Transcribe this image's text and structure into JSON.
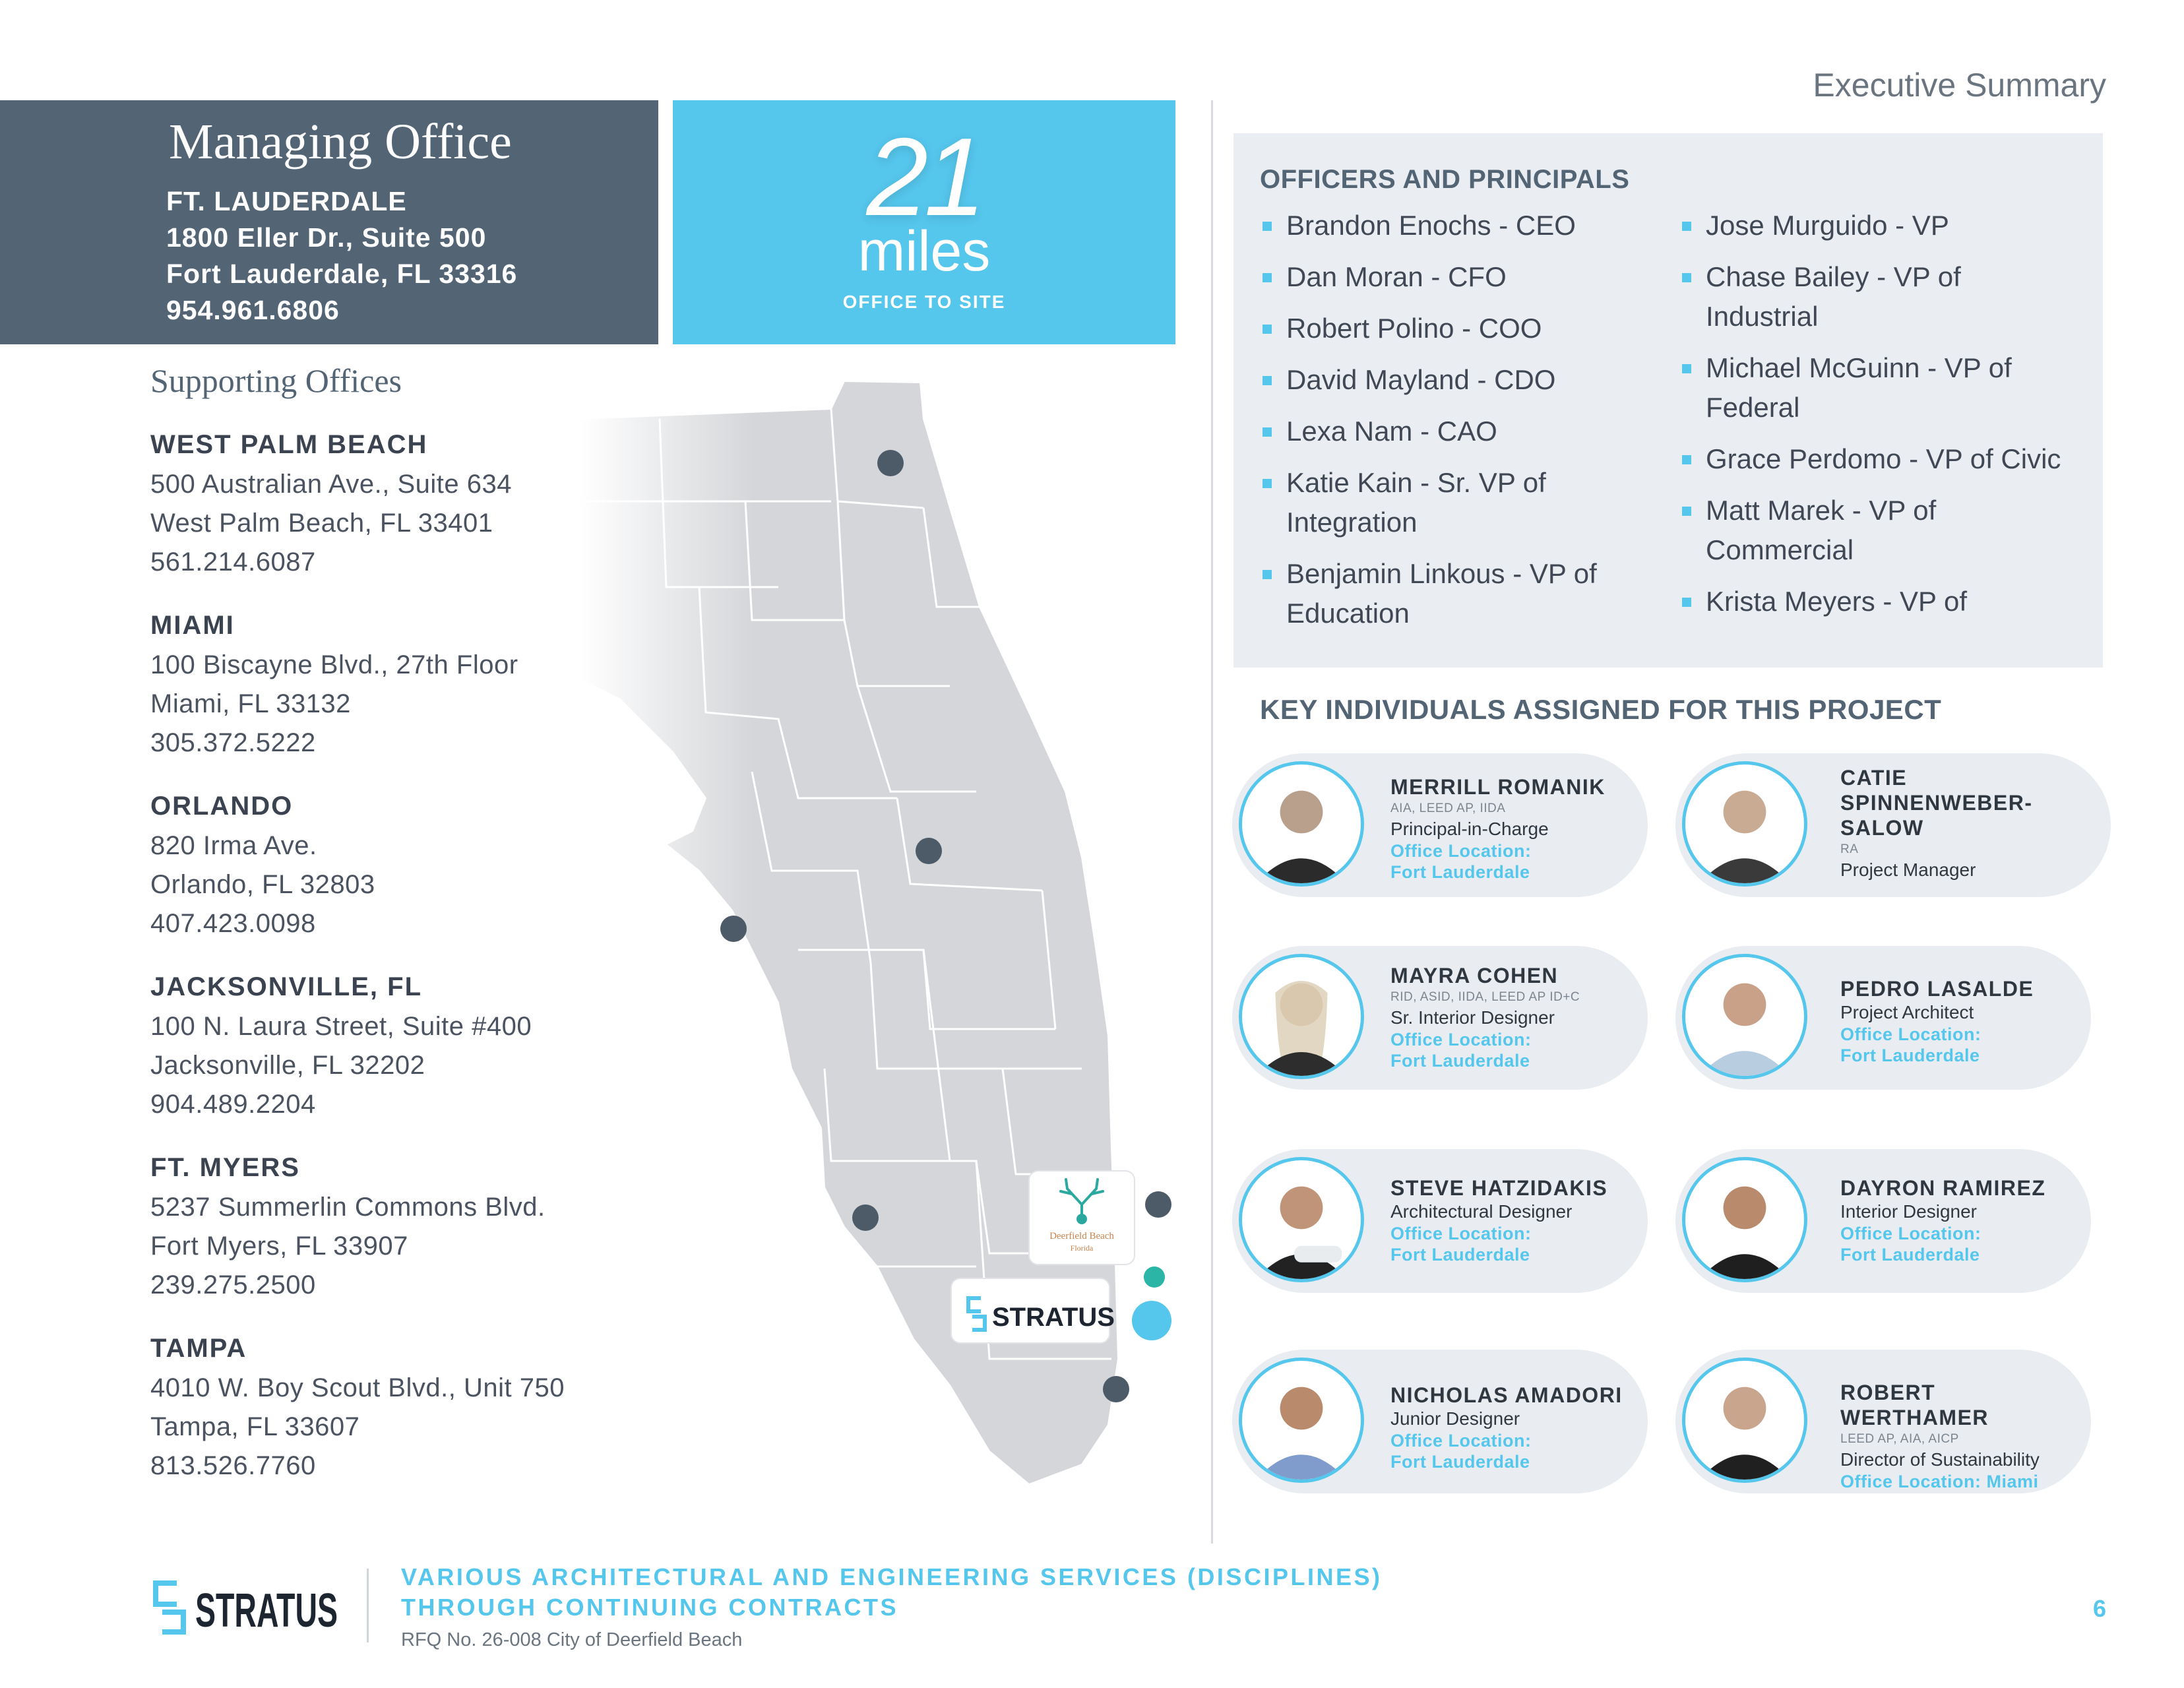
{
  "header": {
    "section_title": "Executive Summary"
  },
  "managing_office": {
    "title": "Managing Office",
    "city": "FT. LAUDERDALE",
    "address1": "1800 Eller Dr., Suite 500",
    "address2": "Fort Lauderdale, FL 33316",
    "phone": "954.961.6806"
  },
  "distance": {
    "value": "21",
    "unit": "miles",
    "caption": "OFFICE TO SITE"
  },
  "supporting": {
    "title": "Supporting Offices",
    "offices": [
      {
        "city": "WEST PALM BEACH",
        "address1": "500 Australian Ave., Suite 634",
        "address2": "West Palm Beach, FL 33401",
        "phone": "561.214.6087"
      },
      {
        "city": "MIAMI",
        "address1": "100 Biscayne Blvd., 27th Floor",
        "address2": "Miami, FL 33132",
        "phone": "305.372.5222"
      },
      {
        "city": "ORLANDO",
        "address1": "820 Irma Ave.",
        "address2": "Orlando, FL 32803",
        "phone": "407.423.0098"
      },
      {
        "city": "JACKSONVILLE, FL",
        "address1": "100 N. Laura Street, Suite #400",
        "address2": "Jacksonville, FL 32202",
        "phone": "904.489.2204"
      },
      {
        "city": "FT. MYERS",
        "address1": "5237 Summerlin Commons Blvd.",
        "address2": "Fort Myers, FL 33907",
        "phone": "239.275.2500"
      },
      {
        "city": "TAMPA",
        "address1": "4010 W. Boy Scout Blvd., Unit 750",
        "address2": "Tampa, FL 33607",
        "phone": "813.526.7760"
      }
    ]
  },
  "map": {
    "client_badge": {
      "line1": "Deerfield Beach",
      "line2": "Florida"
    },
    "stratus_badge": "STRATUS",
    "colors": {
      "land": "#d4d6d9",
      "marker": "#4d5a68",
      "site": "#55c6ec",
      "site_small": "#2bb5a6"
    }
  },
  "officers": {
    "title": "OFFICERS AND PRINCIPALS",
    "col1": [
      {
        "l1": "Brandon Enochs - CEO",
        "l2": ""
      },
      {
        "l1": "Dan Moran - CFO",
        "l2": ""
      },
      {
        "l1": "Robert Polino - COO",
        "l2": ""
      },
      {
        "l1": "David Mayland - CDO",
        "l2": ""
      },
      {
        "l1": "Lexa Nam - CAO",
        "l2": ""
      },
      {
        "l1": "Katie Kain - Sr. VP of",
        "l2": "Integration"
      },
      {
        "l1": "Benjamin Linkous - VP of",
        "l2": "Education"
      }
    ],
    "col2": [
      {
        "l1": "Jose Murguido - VP",
        "l2": ""
      },
      {
        "l1": "Chase Bailey - VP of",
        "l2": "Industrial"
      },
      {
        "l1": "Michael McGuinn - VP of",
        "l2": "Federal"
      },
      {
        "l1": "Grace Perdomo - VP of Civic",
        "l2": ""
      },
      {
        "l1": "Matt Marek - VP of",
        "l2": "Commercial"
      },
      {
        "l1": "Krista Meyers - VP of",
        "l2": ""
      }
    ]
  },
  "key_individuals": {
    "title": "KEY INDIVIDUALS ASSIGNED FOR THIS PROJECT",
    "people": [
      {
        "name": "MERRILL ROMANIK",
        "name2": "",
        "creds": "AIA, LEED AP, IIDA",
        "role": "Principal-in-Charge",
        "loc1": "Office Location:",
        "loc2": "Fort Lauderdale"
      },
      {
        "name": "CATIE",
        "name2": "SPINNENWEBER- SALOW",
        "creds": "RA",
        "role": "Project Manager",
        "loc1": "",
        "loc2": ""
      },
      {
        "name": "MAYRA COHEN",
        "name2": "",
        "creds": "RID, ASID, IIDA, LEED AP ID+C",
        "role": "Sr. Interior Designer",
        "loc1": "Office Location:",
        "loc2": "Fort Lauderdale"
      },
      {
        "name": "PEDRO LASALDE",
        "name2": "",
        "creds": "",
        "role": "Project Architect",
        "loc1": "Office Location:",
        "loc2": "Fort Lauderdale"
      },
      {
        "name": "STEVE HATZIDAKIS",
        "name2": "",
        "creds": "",
        "role": "Architectural Designer",
        "loc1": "Office Location:",
        "loc2": "Fort Lauderdale"
      },
      {
        "name": "DAYRON RAMIREZ",
        "name2": "",
        "creds": "",
        "role": "Interior Designer",
        "loc1": "Office Location:",
        "loc2": "Fort Lauderdale"
      },
      {
        "name": "NICHOLAS AMADORI",
        "name2": "",
        "creds": "",
        "role": "Junior Designer",
        "loc1": "Office Location:",
        "loc2": "Fort Lauderdale"
      },
      {
        "name": "ROBERT WERTHAMER",
        "name2": "",
        "creds": "LEED AP, AIA, AICP",
        "role": "Director of Sustainability",
        "loc1": "Office Location: Miami",
        "loc2": ""
      }
    ]
  },
  "footer": {
    "logo_text": "STRATUS",
    "line1": "VARIOUS ARCHITECTURAL AND ENGINEERING SERVICES (DISCIPLINES)",
    "line2": "THROUGH CONTINUING CONTRACTS",
    "line3": "RFQ No. 26-008 City of Deerfield Beach",
    "page": "6"
  }
}
